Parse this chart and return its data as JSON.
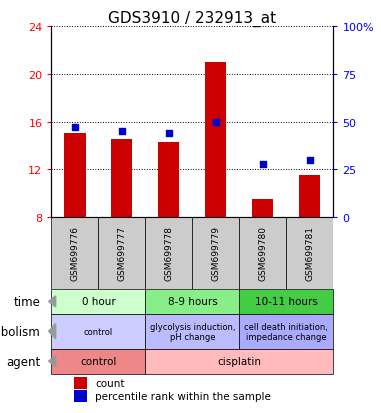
{
  "title": "GDS3910 / 232913_at",
  "samples": [
    "GSM699776",
    "GSM699777",
    "GSM699778",
    "GSM699779",
    "GSM699780",
    "GSM699781"
  ],
  "bar_values": [
    15.0,
    14.5,
    14.3,
    21.0,
    9.5,
    11.5
  ],
  "bar_bottom": 8.0,
  "percentile_values": [
    47,
    45,
    44,
    50,
    28,
    30
  ],
  "ylim_left": [
    8,
    24
  ],
  "ylim_right": [
    0,
    100
  ],
  "yticks_left": [
    8,
    12,
    16,
    20,
    24
  ],
  "yticks_right": [
    0,
    25,
    50,
    75,
    100
  ],
  "ytick_labels_right": [
    "0",
    "25",
    "50",
    "75",
    "100%"
  ],
  "bar_color": "#cc0000",
  "dot_color": "#0000cc",
  "bar_width": 0.45,
  "time_labels": [
    [
      "0 hour",
      0,
      2
    ],
    [
      "8-9 hours",
      2,
      4
    ],
    [
      "10-11 hours",
      4,
      6
    ]
  ],
  "time_bg_colors": [
    "#ccffcc",
    "#88ee88",
    "#44cc44"
  ],
  "metabolism_labels": [
    [
      "control",
      0,
      2
    ],
    [
      "glycolysis induction,\npH change",
      2,
      4
    ],
    [
      "cell death initiation,\nimpedance change",
      4,
      6
    ]
  ],
  "metabolism_bg_colors": [
    "#ccccff",
    "#bbbbff",
    "#aaaaff"
  ],
  "agent_labels": [
    [
      "control",
      0,
      2
    ],
    [
      "cisplatin",
      2,
      6
    ]
  ],
  "agent_bg_colors": [
    "#ee8888",
    "#ffbbbb"
  ],
  "row_labels": [
    "time",
    "metabolism",
    "agent"
  ],
  "legend_items": [
    [
      "count",
      "#cc0000"
    ],
    [
      "percentile rank within the sample",
      "#0000cc"
    ]
  ],
  "sample_bg_color": "#cccccc",
  "plot_bg_color": "#ffffff",
  "title_fontsize": 11,
  "tick_fontsize": 8,
  "annotation_fontsize": 7.5,
  "meta_fontsize": 6,
  "row_label_fontsize": 8.5
}
